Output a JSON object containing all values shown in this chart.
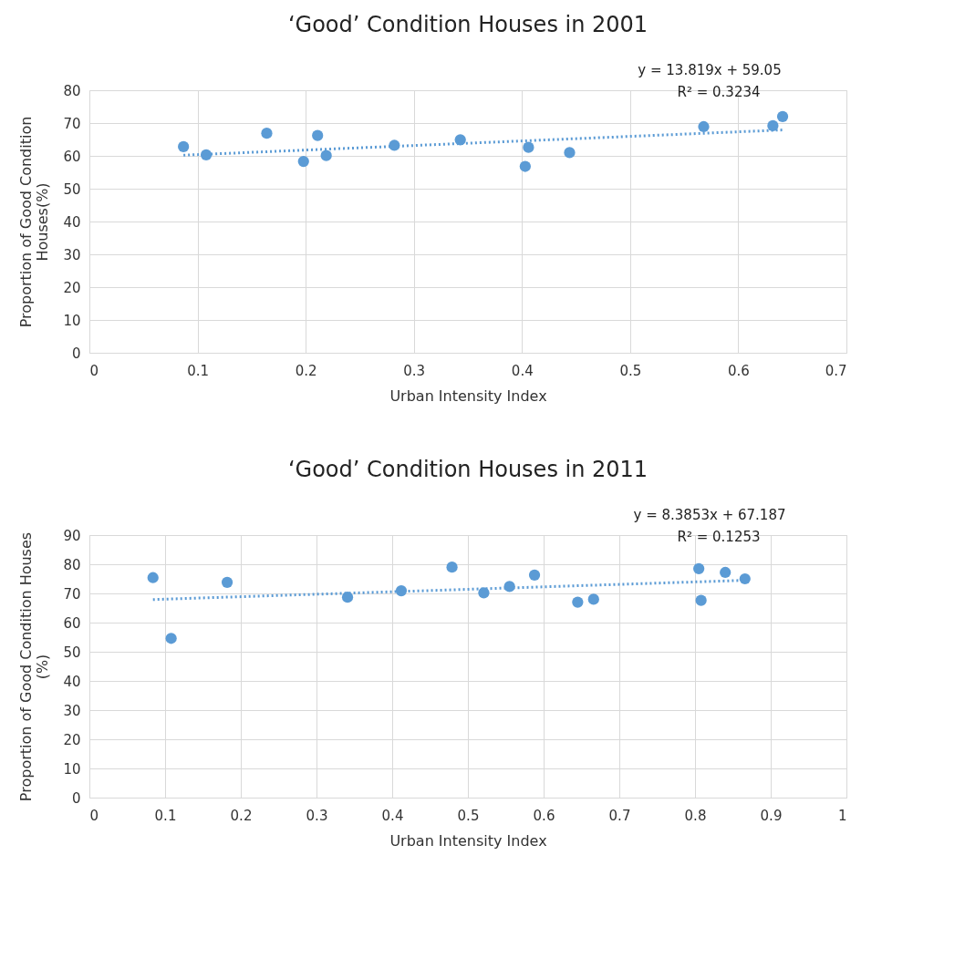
{
  "chart_data": [
    {
      "type": "scatter",
      "title": "‘Good’ Condition Houses  in 2001",
      "xlabel": "Urban Intensity Index",
      "ylabel": "Proportion of Good Condition\nHouses(%)",
      "xlim": [
        0,
        0.7
      ],
      "xticks": [
        0,
        0.1,
        0.2,
        0.3,
        0.4,
        0.5,
        0.6,
        0.7
      ],
      "ylim": [
        0,
        80
      ],
      "yticks": [
        0,
        10,
        20,
        30,
        40,
        50,
        60,
        70,
        80
      ],
      "grid": true,
      "annotations": [
        "y = 13.819x + 59.05",
        "R² = 0.3234"
      ],
      "series": [
        {
          "color": "#5b9bd5",
          "marker": "circle",
          "x": [
            0.087,
            0.108,
            0.164,
            0.198,
            0.211,
            0.219,
            0.282,
            0.343,
            0.403,
            0.406,
            0.444,
            0.568,
            0.632,
            0.641
          ],
          "values": [
            62.8,
            60.3,
            66.9,
            58.3,
            66.2,
            60.1,
            63.2,
            64.9,
            56.8,
            62.6,
            61.0,
            68.9,
            69.2,
            72.0
          ]
        },
        {
          "type": "line",
          "color": "#5b9bd5",
          "marker": "none",
          "line_style": "dotted",
          "x": [
            0.087,
            0.641
          ],
          "values": [
            60.2,
            67.9
          ]
        }
      ]
    },
    {
      "type": "scatter",
      "title": "‘Good’ Condition Houses  in 2011",
      "xlabel": "Urban Intensity Index",
      "ylabel": "Proportion of Good Condition Houses\n(%)",
      "xlim": [
        0,
        1
      ],
      "xticks": [
        0,
        0.1,
        0.2,
        0.3,
        0.4,
        0.5,
        0.6,
        0.7,
        0.8,
        0.9,
        1
      ],
      "ylim": [
        0,
        90
      ],
      "yticks": [
        0,
        10,
        20,
        30,
        40,
        50,
        60,
        70,
        80,
        90
      ],
      "grid": true,
      "annotations": [
        "y = 8.3853x + 67.187",
        "R² = 0.1253"
      ],
      "series": [
        {
          "color": "#5b9bd5",
          "marker": "circle",
          "x": [
            0.084,
            0.108,
            0.182,
            0.341,
            0.412,
            0.479,
            0.521,
            0.555,
            0.588,
            0.645,
            0.666,
            0.805,
            0.808,
            0.84,
            0.866
          ],
          "values": [
            75.4,
            54.6,
            73.8,
            68.7,
            70.9,
            79.0,
            70.2,
            72.4,
            76.3,
            67.0,
            68.0,
            78.5,
            67.6,
            77.2,
            75.0
          ]
        },
        {
          "type": "line",
          "color": "#5b9bd5",
          "marker": "none",
          "line_style": "dotted",
          "x": [
            0.084,
            0.866
          ],
          "values": [
            67.9,
            74.5
          ]
        }
      ]
    }
  ]
}
